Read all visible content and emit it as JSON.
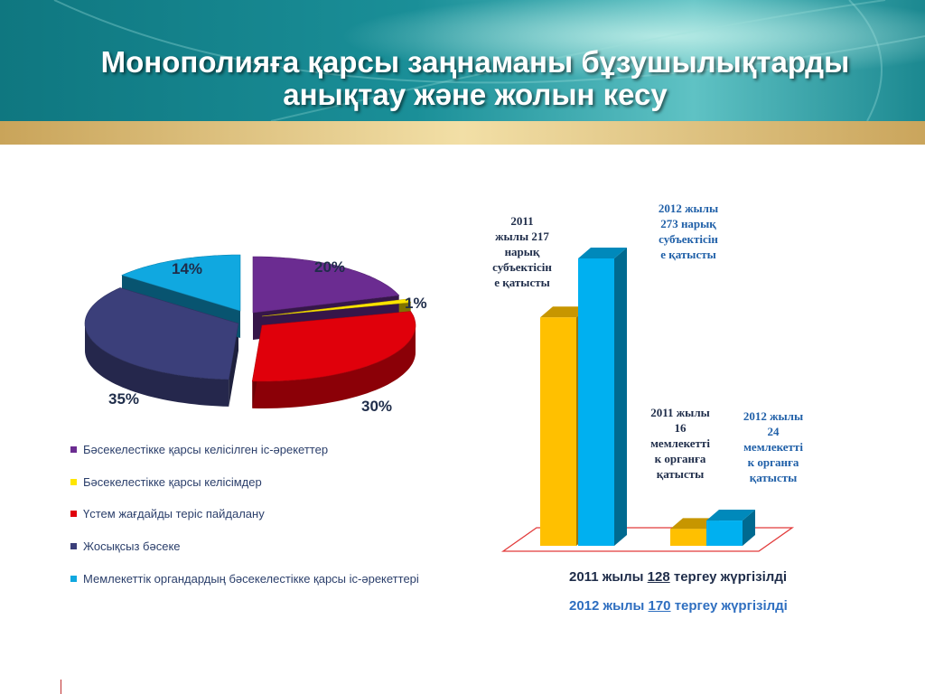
{
  "header": {
    "title_line1": "Монополияға қарсы заңнаманы бұзушылықтарды",
    "title_line2": "анықтау және жолын кесу"
  },
  "colors": {
    "header_teal": "#1a8a93",
    "header_gold": "#d6b770",
    "purple": "#6b2c91",
    "yellow": "#ffe600",
    "red": "#e0000b",
    "navy": "#3b3f7a",
    "cyan": "#10a8e0",
    "bar_2011": "#ffc000",
    "bar_2012": "#00b0f0",
    "annot_2011": "#1f2d4a",
    "annot_2012": "#2060a8",
    "floor": "#e23a3a"
  },
  "chart_data": [
    {
      "type": "pie",
      "title": "",
      "legend_position": "bottom",
      "slices": [
        {
          "label": "Бәсекелестікке қарсы келісілген іс-әрекеттер",
          "value": 20,
          "value_label": "20%",
          "color": "#6b2c91"
        },
        {
          "label": "Бәсекелестікке қарсы келісімдер",
          "value": 1,
          "value_label": "1%",
          "color": "#ffe600"
        },
        {
          "label": "Үстем жағдайды теріс пайдалану",
          "value": 30,
          "value_label": "30%",
          "color": "#e0000b"
        },
        {
          "label": "Жосықсыз бәсеке",
          "value": 35,
          "value_label": "35%",
          "color": "#3b3f7a"
        },
        {
          "label": "Мемлекеттік органдардың бәсекелестікке қарсы іс-әрекеттері",
          "value": 14,
          "value_label": "14%",
          "color": "#10a8e0"
        }
      ]
    },
    {
      "type": "bar",
      "title": "",
      "categories": [
        "нарық субъектісі",
        "мемлекеттік орган"
      ],
      "series": [
        {
          "name": "2011",
          "values": [
            217,
            16
          ],
          "color": "#ffc000"
        },
        {
          "name": "2012",
          "values": [
            273,
            24
          ],
          "color": "#00b0f0"
        }
      ],
      "ylim": [
        0,
        273
      ],
      "annotations": [
        {
          "series": "2011",
          "category": 0,
          "lines": [
            "2011",
            "жылы 217",
            "нарық",
            "субъектісін",
            "е қатысты"
          ]
        },
        {
          "series": "2012",
          "category": 0,
          "lines": [
            "2012 жылы",
            "273 нарық",
            "субъектісін",
            "е қатысты"
          ]
        },
        {
          "series": "2011",
          "category": 1,
          "lines": [
            "2011 жылы",
            "16",
            "мемлекетті",
            "к органға",
            "қатысты"
          ]
        },
        {
          "series": "2012",
          "category": 1,
          "lines": [
            "2012 жылы",
            "24",
            "мемлекетті",
            "к органға",
            "қатысты"
          ]
        }
      ]
    }
  ],
  "summary": {
    "line1": {
      "prefix": "2011 жылы ",
      "number": "128",
      "suffix": " тергеу жүргізілді"
    },
    "line2": {
      "prefix": "2012 жылы ",
      "number": "170",
      "suffix": " тергеу жүргізілді"
    }
  }
}
